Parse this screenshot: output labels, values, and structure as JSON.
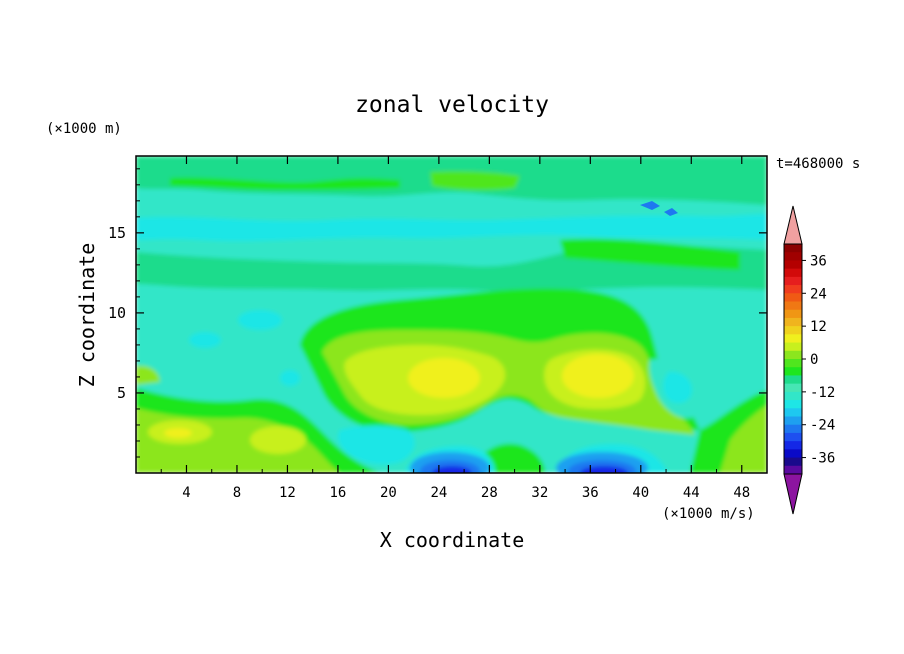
{
  "chart_data": {
    "type": "heatmap",
    "title": "zonal velocity",
    "xlabel": "X coordinate",
    "ylabel": "Z coordinate",
    "x_unit_label": "(×1000 m/s)",
    "y_unit_label": "(×1000 m)",
    "time_label": "t=468000 s",
    "xlim": [
      0,
      50
    ],
    "ylim": [
      0,
      19.8
    ],
    "x_ticks": [
      4,
      8,
      12,
      16,
      20,
      24,
      28,
      32,
      36,
      40,
      44,
      48
    ],
    "y_ticks": [
      5,
      10,
      15
    ],
    "colorbar": {
      "levels": [
        -42,
        -39,
        -36,
        -33,
        -30,
        -27,
        -24,
        -21,
        -18,
        -15,
        -12,
        -9,
        -6,
        -3,
        0,
        3,
        6,
        9,
        12,
        15,
        18,
        21,
        24,
        27,
        30,
        33,
        36,
        39,
        42
      ],
      "colors": [
        "#5a0aa0",
        "#1a0a8c",
        "#0a0ac8",
        "#1428e6",
        "#1e50f0",
        "#1e78f0",
        "#1ea0f0",
        "#1ec8f0",
        "#1ee6e6",
        "#32e6c8",
        "#46e6b4",
        "#1edc8c",
        "#1ee61e",
        "#50e61e",
        "#8ce61e",
        "#c8f01e",
        "#f0f01e",
        "#f0d21e",
        "#f0b41e",
        "#f09614",
        "#f07814",
        "#f05a14",
        "#f03c1e",
        "#e61e1e",
        "#d20a0a",
        "#b40000",
        "#a00000",
        "#8c0000"
      ],
      "tick_labels": [
        "36",
        "24",
        "12",
        "0",
        "-12",
        "-24",
        "-36"
      ],
      "over_color": "#f0a0a0",
      "under_color": "#8c14a0"
    },
    "features": [
      {
        "x": 25,
        "z": 6.2,
        "value": 12
      },
      {
        "x": 36,
        "z": 6.2,
        "value": 12
      },
      {
        "x": 25,
        "z": 0.6,
        "value": -30
      },
      {
        "x": 37,
        "z": 0.6,
        "value": -30
      },
      {
        "x": 4,
        "z": 2.6,
        "value": 9
      },
      {
        "x": 20,
        "z": 2.2,
        "value": -9
      },
      {
        "x": 44,
        "z": 5.5,
        "value": -9
      }
    ]
  }
}
